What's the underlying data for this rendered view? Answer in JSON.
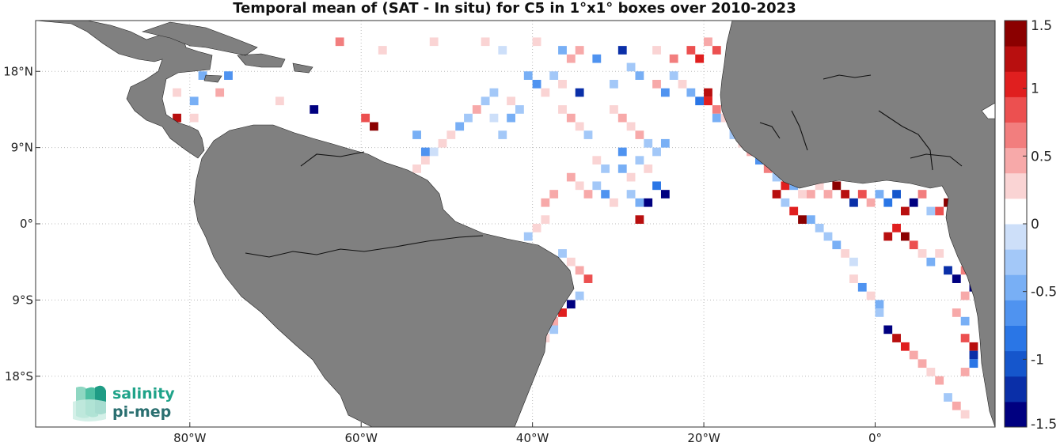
{
  "title": "Temporal mean of (SAT - In situ) for C5 in 1°x1° boxes over 2010-2023",
  "chart_data": {
    "type": "heatmap",
    "title": "Temporal mean of (SAT - In situ) for C5 in 1°x1° boxes over 2010-2023",
    "x_range_lon": [
      -98,
      14
    ],
    "y_range_lat": [
      -24,
      24
    ],
    "x_ticks": [
      {
        "value": -80,
        "label": "80°W"
      },
      {
        "value": -60,
        "label": "60°W"
      },
      {
        "value": -40,
        "label": "40°W"
      },
      {
        "value": -20,
        "label": "20°W"
      },
      {
        "value": 0,
        "label": "0°"
      }
    ],
    "y_ticks": [
      {
        "value": 18,
        "label": "18°N"
      },
      {
        "value": 9,
        "label": "9°N"
      },
      {
        "value": 0,
        "label": "0°"
      },
      {
        "value": -9,
        "label": "9°S"
      },
      {
        "value": -18,
        "label": "18°S"
      }
    ],
    "grid": "dotted",
    "colorbar": {
      "min": -1.5,
      "max": 1.5,
      "ticks": [
        "1.5",
        "1",
        "0.5",
        "0",
        "-0.5",
        "-1",
        "-1.5"
      ],
      "colors": [
        "#000080",
        "#0a2fa8",
        "#1556cc",
        "#2a76e6",
        "#4f93f0",
        "#78aff5",
        "#a3c8f8",
        "#cddff9",
        "#ffffff",
        "#fad4d4",
        "#f7a9a9",
        "#f27e7e",
        "#ec5050",
        "#e01f1f",
        "#b80f0f",
        "#8b0000"
      ]
    },
    "cells": [
      [
        -66,
        20,
        0.1
      ],
      [
        -63,
        21,
        0.7
      ],
      [
        -58,
        20,
        0.2
      ],
      [
        -52,
        21,
        0.3
      ],
      [
        -48,
        21,
        0.1
      ],
      [
        -46,
        21,
        0.2
      ],
      [
        -44,
        20,
        -0.1
      ],
      [
        -40,
        21,
        0.3
      ],
      [
        -37,
        20,
        -0.4
      ],
      [
        -36,
        19,
        0.4
      ],
      [
        -35,
        20,
        0.5
      ],
      [
        -33,
        19,
        -0.6
      ],
      [
        -30,
        20,
        -1.3
      ],
      [
        -29,
        18,
        -0.3
      ],
      [
        -26,
        20,
        0.2
      ],
      [
        -24,
        19,
        0.6
      ],
      [
        -22,
        20,
        0.8
      ],
      [
        -21,
        19,
        1.1
      ],
      [
        -20,
        21,
        0.4
      ],
      [
        -19,
        20,
        0.9
      ],
      [
        -41,
        17,
        -0.4
      ],
      [
        -40,
        16,
        -0.6
      ],
      [
        -39,
        15,
        0.2
      ],
      [
        -38,
        17,
        -0.3
      ],
      [
        -37,
        16,
        0.3
      ],
      [
        -35,
        15,
        -1.2
      ],
      [
        -33,
        17,
        0.1
      ],
      [
        -31,
        16,
        -0.2
      ],
      [
        -28,
        17,
        -0.5
      ],
      [
        -26,
        16,
        0.4
      ],
      [
        -25,
        15,
        -0.7
      ],
      [
        -24,
        17,
        -0.3
      ],
      [
        -23,
        16,
        0.2
      ],
      [
        -22,
        15,
        -0.4
      ],
      [
        -21,
        14,
        -0.9
      ],
      [
        -20,
        15,
        1.3
      ],
      [
        -20,
        14,
        1.0
      ],
      [
        -19,
        13,
        0.6
      ],
      [
        -19,
        12,
        -0.5
      ],
      [
        -45,
        15,
        -0.2
      ],
      [
        -46,
        14,
        -0.3
      ],
      [
        -47,
        13,
        0.4
      ],
      [
        -48,
        12,
        -0.2
      ],
      [
        -49,
        11,
        -0.4
      ],
      [
        -50,
        10,
        0.2
      ],
      [
        -51,
        9,
        0.3
      ],
      [
        -52,
        8,
        -0.1
      ],
      [
        -53,
        7,
        0.3
      ],
      [
        -54,
        6,
        0.2
      ],
      [
        -42,
        13,
        -0.2
      ],
      [
        -43,
        12,
        -0.4
      ],
      [
        -44,
        11,
        0.1
      ],
      [
        -37,
        13,
        0.3
      ],
      [
        -36,
        12,
        0.4
      ],
      [
        -35,
        11,
        0.2
      ],
      [
        -34,
        10,
        -0.3
      ],
      [
        -33,
        9,
        0.1
      ],
      [
        -31,
        13,
        0.2
      ],
      [
        -30,
        12,
        0.5
      ],
      [
        -29,
        11,
        0.3
      ],
      [
        -28,
        10,
        0.4
      ],
      [
        -27,
        9,
        -0.3
      ],
      [
        -26,
        8,
        -0.2
      ],
      [
        -25,
        9,
        -0.5
      ],
      [
        -60,
        12,
        0.9
      ],
      [
        -59,
        11,
        1.4
      ],
      [
        -56,
        5,
        1.2
      ],
      [
        -55,
        4,
        1.1
      ],
      [
        -53,
        8,
        -0.6
      ],
      [
        -54,
        10,
        -0.4
      ],
      [
        -44,
        10,
        -0.2
      ],
      [
        -45,
        12,
        -0.1
      ],
      [
        -43,
        14,
        0.3
      ],
      [
        -36,
        5,
        0.4
      ],
      [
        -35,
        4,
        0.3
      ],
      [
        -34,
        3,
        0.5
      ],
      [
        -33,
        4,
        -0.3
      ],
      [
        -32,
        3,
        -0.7
      ],
      [
        -31,
        2,
        0.2
      ],
      [
        -30,
        4,
        0.1
      ],
      [
        -29,
        3,
        -0.2
      ],
      [
        -28,
        2,
        -0.4
      ],
      [
        -27,
        2,
        -1.4
      ],
      [
        -28,
        0,
        1.2
      ],
      [
        -29,
        5,
        0.3
      ],
      [
        -30,
        6,
        -0.5
      ],
      [
        -32,
        6,
        -0.2
      ],
      [
        -33,
        7,
        0.2
      ],
      [
        -38,
        3,
        0.4
      ],
      [
        -39,
        2,
        0.5
      ],
      [
        -39,
        0,
        0.3
      ],
      [
        -40,
        -1,
        0.2
      ],
      [
        -41,
        -2,
        -0.3
      ],
      [
        -37,
        -4,
        -0.3
      ],
      [
        -36,
        -5,
        0.2
      ],
      [
        -35,
        -6,
        0.4
      ],
      [
        -34,
        -7,
        0.9
      ],
      [
        -35,
        -9,
        -0.3
      ],
      [
        -36,
        -10,
        -1.4
      ],
      [
        -37,
        -11,
        1.0
      ],
      [
        -38,
        -12,
        0.4
      ],
      [
        -38,
        -13,
        -0.3
      ],
      [
        -39,
        -14,
        0.3
      ],
      [
        -40,
        -15,
        0.2
      ],
      [
        -40,
        -16,
        -0.2
      ],
      [
        -41,
        -17,
        0.3
      ],
      [
        -42,
        -18,
        0.2
      ],
      [
        -43,
        -19,
        0.4
      ],
      [
        -43,
        -20,
        0.6
      ],
      [
        -44,
        -21,
        0.9
      ],
      [
        -45,
        -22,
        1.2
      ],
      [
        -46,
        -23,
        1.3
      ],
      [
        -44,
        -23,
        0.8
      ],
      [
        -82,
        15,
        0.3
      ],
      [
        -80,
        14,
        -0.4
      ],
      [
        -84,
        12,
        -0.3
      ],
      [
        -82,
        12,
        1.2
      ],
      [
        -80,
        12,
        0.3
      ],
      [
        -77,
        15,
        0.5
      ],
      [
        -79,
        17,
        -0.5
      ],
      [
        -76,
        17,
        -0.6
      ],
      [
        -70,
        14,
        0.2
      ],
      [
        -66,
        13,
        -1.4
      ],
      [
        -18,
        12,
        0.2
      ],
      [
        -17,
        11,
        -0.4
      ],
      [
        -17,
        10,
        -0.2
      ],
      [
        -16,
        9,
        0.3
      ],
      [
        -15,
        8,
        0.4
      ],
      [
        -14,
        7,
        -0.6
      ],
      [
        -13,
        6,
        0.6
      ],
      [
        -12,
        5,
        -0.3
      ],
      [
        -11,
        4,
        1.1
      ],
      [
        -10,
        4,
        -0.4
      ],
      [
        -9,
        3,
        0.3
      ],
      [
        -8,
        3,
        0.5
      ],
      [
        -7,
        4,
        0.2
      ],
      [
        -6,
        3,
        0.4
      ],
      [
        -5,
        4,
        1.4
      ],
      [
        -4,
        3,
        1.3
      ],
      [
        -3,
        2,
        -1.3
      ],
      [
        -2,
        3,
        0.9
      ],
      [
        -1,
        2,
        0.5
      ],
      [
        0,
        3,
        -0.5
      ],
      [
        1,
        2,
        -0.8
      ],
      [
        2,
        3,
        -1.1
      ],
      [
        3,
        1,
        1.3
      ],
      [
        4,
        2,
        -1.4
      ],
      [
        5,
        3,
        0.6
      ],
      [
        6,
        1,
        -0.3
      ],
      [
        7,
        1,
        0.8
      ],
      [
        8,
        2,
        1.4
      ],
      [
        9,
        3,
        -1.3
      ],
      [
        9,
        1,
        1.2
      ],
      [
        -12,
        3,
        1.3
      ],
      [
        -11,
        2,
        -0.2
      ],
      [
        -10,
        1,
        1.0
      ],
      [
        -9,
        0,
        1.4
      ],
      [
        -8,
        0,
        -0.4
      ],
      [
        -7,
        -1,
        -0.2
      ],
      [
        -6,
        -2,
        -0.3
      ],
      [
        -5,
        -3,
        -0.5
      ],
      [
        -4,
        -4,
        0.2
      ],
      [
        -3,
        -5,
        -0.1
      ],
      [
        -4,
        -6,
        0.1
      ],
      [
        -3,
        -7,
        0.2
      ],
      [
        -2,
        -8,
        -0.6
      ],
      [
        -1,
        -9,
        0.3
      ],
      [
        0,
        -10,
        -0.4
      ],
      [
        0,
        -11,
        -0.2
      ],
      [
        1,
        -13,
        -1.4
      ],
      [
        2,
        -14,
        1.2
      ],
      [
        3,
        -15,
        1.0
      ],
      [
        4,
        -16,
        0.5
      ],
      [
        5,
        -17,
        0.4
      ],
      [
        6,
        -18,
        0.3
      ],
      [
        7,
        -19,
        0.4
      ],
      [
        8,
        -21,
        -0.2
      ],
      [
        9,
        -22,
        0.5
      ],
      [
        10,
        -23,
        0.3
      ],
      [
        1,
        -2,
        1.2
      ],
      [
        2,
        -1,
        1.0
      ],
      [
        3,
        -2,
        1.4
      ],
      [
        4,
        -3,
        0.9
      ],
      [
        5,
        -4,
        0.3
      ],
      [
        6,
        -5,
        -0.4
      ],
      [
        7,
        -4,
        0.2
      ],
      [
        8,
        -6,
        -1.3
      ],
      [
        9,
        -7,
        -1.4
      ],
      [
        10,
        -6,
        0.6
      ],
      [
        11,
        -8,
        -1.5
      ],
      [
        10,
        -9,
        0.5
      ],
      [
        9,
        -11,
        0.4
      ],
      [
        10,
        -12,
        -0.4
      ],
      [
        10,
        -14,
        0.8
      ],
      [
        11,
        -15,
        1.3
      ],
      [
        11,
        -16,
        -1.2
      ],
      [
        11,
        -17,
        -0.8
      ],
      [
        10,
        -18,
        0.4
      ],
      [
        -26,
        4,
        -0.8
      ],
      [
        -25,
        3,
        -1.5
      ],
      [
        -30,
        8,
        -0.6
      ],
      [
        -28,
        7,
        -0.3
      ],
      [
        -27,
        6,
        0.2
      ]
    ]
  }
}
